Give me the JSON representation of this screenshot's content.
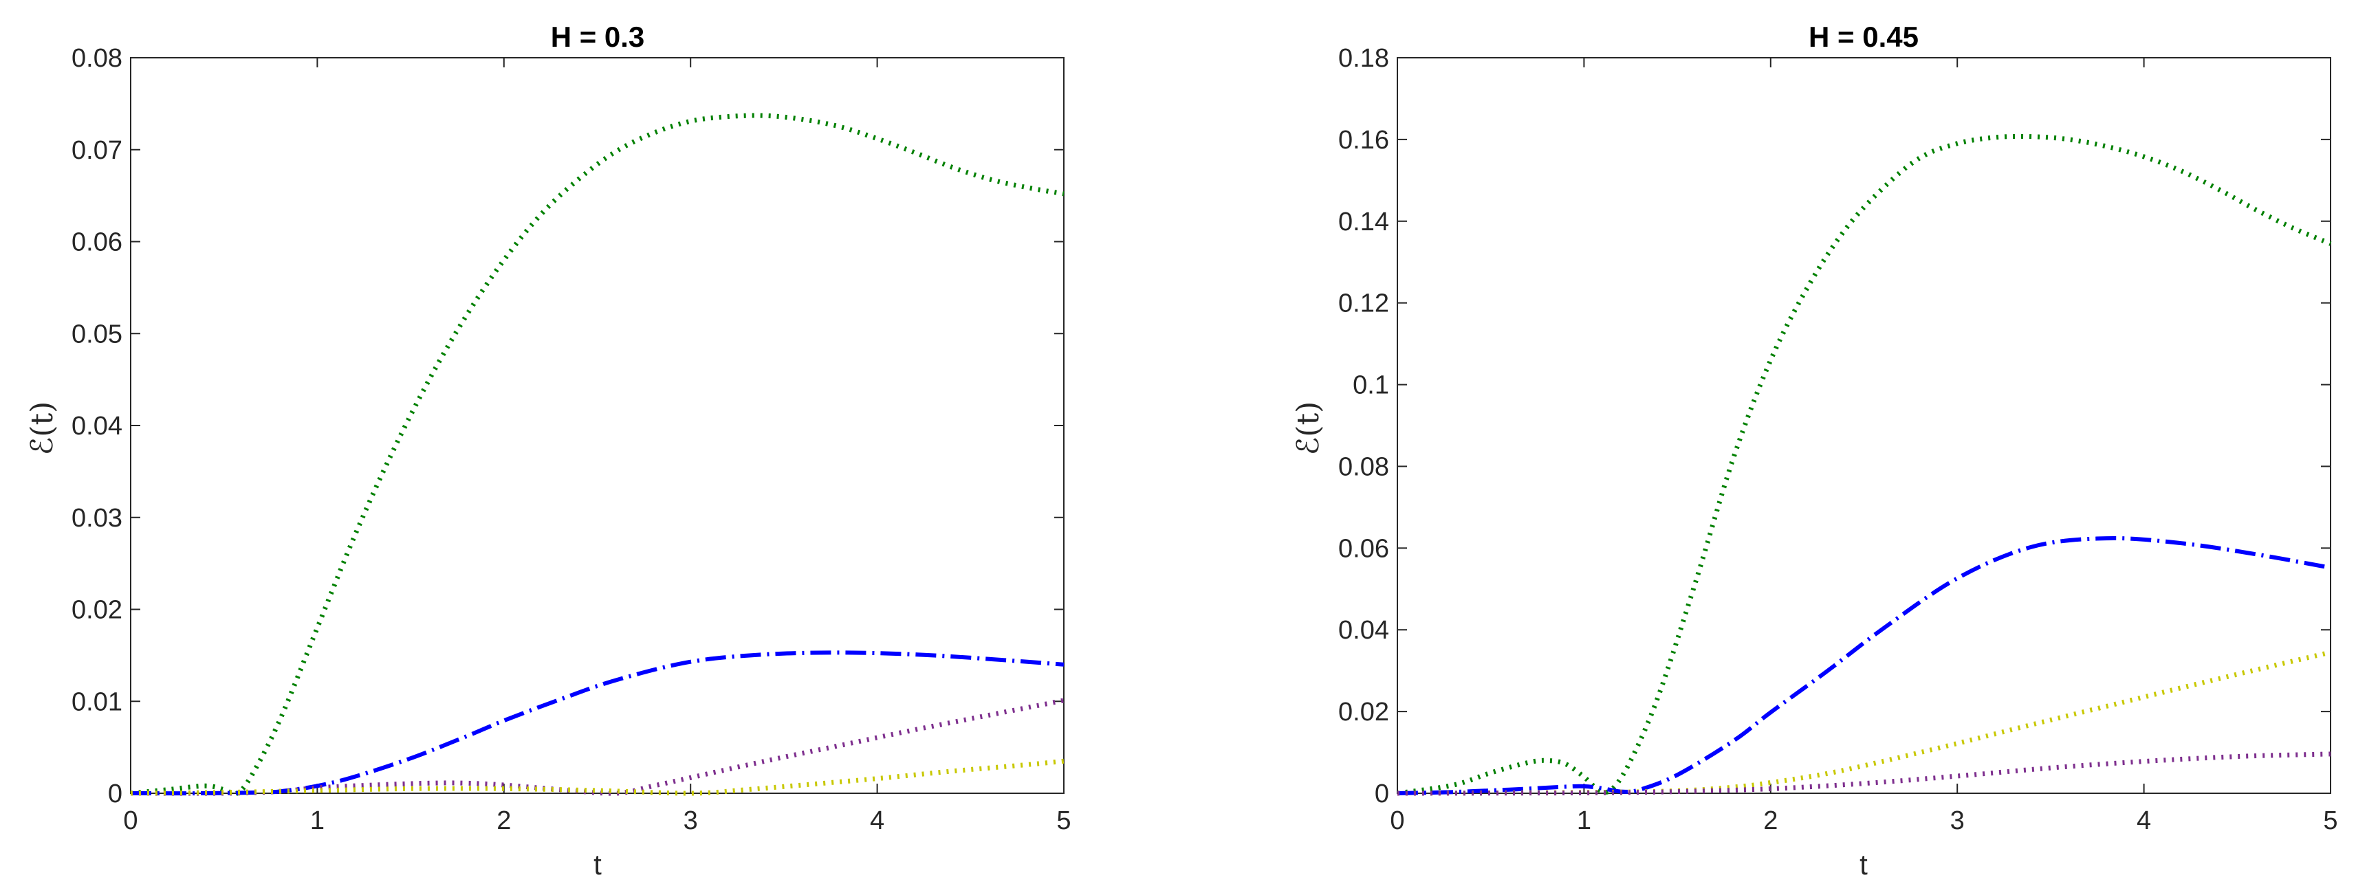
{
  "chart_data": [
    {
      "type": "line",
      "title": "H = 0.3",
      "xlabel": "t",
      "ylabel": "ℰ(t)",
      "xlim": [
        0,
        5
      ],
      "ylim": [
        0,
        0.08
      ],
      "xticks": [
        0,
        1,
        2,
        3,
        4,
        5
      ],
      "xtick_labels": [
        "0",
        "1",
        "2",
        "3",
        "4",
        "5"
      ],
      "yticks": [
        0,
        0.01,
        0.02,
        0.03,
        0.04,
        0.05,
        0.06,
        0.07,
        0.08
      ],
      "ytick_labels": [
        "0",
        "0.01",
        "0.02",
        "0.03",
        "0.04",
        "0.05",
        "0.06",
        "0.07",
        "0.08"
      ],
      "grid": false,
      "series": [
        {
          "name": "green",
          "color": "#008000",
          "style": "dotted",
          "x": [
            0,
            0.2,
            0.4,
            0.5,
            0.57,
            0.65,
            0.8,
            1.0,
            1.2,
            1.4,
            1.6,
            1.8,
            2.0,
            2.2,
            2.4,
            2.6,
            2.8,
            3.0,
            3.2,
            3.4,
            3.6,
            3.8,
            4.0,
            4.2,
            4.4,
            4.6,
            4.8,
            5.0
          ],
          "y": [
            0,
            0.0004,
            0.0008,
            0.0004,
            0,
            0.002,
            0.008,
            0.018,
            0.028,
            0.037,
            0.045,
            0.052,
            0.058,
            0.063,
            0.0668,
            0.0698,
            0.0718,
            0.0731,
            0.0736,
            0.0737,
            0.0733,
            0.0725,
            0.0712,
            0.0697,
            0.0681,
            0.0668,
            0.0659,
            0.0652
          ]
        },
        {
          "name": "blue",
          "color": "#0000ff",
          "style": "dashdot",
          "x": [
            0,
            0.4,
            0.7,
            0.8,
            1.0,
            1.2,
            1.5,
            1.8,
            2.0,
            2.3,
            2.6,
            3.0,
            3.4,
            3.8,
            4.2,
            4.6,
            5.0
          ],
          "y": [
            0,
            0,
            0.0001,
            0.0002,
            0.0008,
            0.0018,
            0.0038,
            0.0062,
            0.0079,
            0.0102,
            0.0123,
            0.0143,
            0.0151,
            0.0153,
            0.0151,
            0.0146,
            0.014
          ]
        },
        {
          "name": "purple",
          "color": "#7e2f8e",
          "style": "dotted",
          "x": [
            0,
            0.5,
            0.8,
            1.0,
            1.3,
            1.6,
            1.8,
            2.0,
            2.3,
            2.6,
            2.8,
            3.0,
            3.4,
            3.8,
            4.2,
            4.6,
            5.0
          ],
          "y": [
            0,
            0,
            0.0002,
            0.0006,
            0.0009,
            0.0011,
            0.0011,
            0.0009,
            0.0004,
            0,
            0.0008,
            0.0017,
            0.0035,
            0.0052,
            0.0069,
            0.0085,
            0.0101
          ]
        },
        {
          "name": "yellow",
          "color": "#c8c800",
          "style": "dotted",
          "x": [
            0,
            0.5,
            1.0,
            1.5,
            2.0,
            2.5,
            3.0,
            3.3,
            3.6,
            4.0,
            4.4,
            4.8,
            5.0
          ],
          "y": [
            0,
            0.0001,
            0.0003,
            0.0005,
            0.0005,
            0.0003,
            0,
            0.0004,
            0.0009,
            0.0016,
            0.0024,
            0.0031,
            0.0035
          ]
        }
      ]
    },
    {
      "type": "line",
      "title": "H = 0.45",
      "xlabel": "t",
      "ylabel": "ℰ(t)",
      "xlim": [
        0,
        5
      ],
      "ylim": [
        0,
        0.18
      ],
      "xticks": [
        0,
        1,
        2,
        3,
        4,
        5
      ],
      "xtick_labels": [
        "0",
        "1",
        "2",
        "3",
        "4",
        "5"
      ],
      "yticks": [
        0,
        0.02,
        0.04,
        0.06,
        0.08,
        0.1,
        0.12,
        0.14,
        0.16,
        0.18
      ],
      "ytick_labels": [
        "0",
        "0.02",
        "0.04",
        "0.06",
        "0.08",
        "0.1",
        "0.12",
        "0.14",
        "0.16",
        "0.18"
      ],
      "grid": false,
      "series": [
        {
          "name": "green",
          "color": "#008000",
          "style": "dotted",
          "x": [
            0,
            0.3,
            0.5,
            0.7,
            0.8,
            0.9,
            1.0,
            1.08,
            1.15,
            1.25,
            1.4,
            1.6,
            1.8,
            2.0,
            2.2,
            2.4,
            2.6,
            2.8,
            3.0,
            3.2,
            3.4,
            3.6,
            3.8,
            4.0,
            4.2,
            4.4,
            4.6,
            4.8,
            5.0
          ],
          "y": [
            0,
            0.002,
            0.005,
            0.0075,
            0.008,
            0.0072,
            0.004,
            0.0008,
            0.001,
            0.008,
            0.024,
            0.052,
            0.082,
            0.106,
            0.124,
            0.138,
            0.148,
            0.1555,
            0.159,
            0.1605,
            0.1607,
            0.16,
            0.1583,
            0.1558,
            0.1523,
            0.1478,
            0.1428,
            0.1383,
            0.1345
          ]
        },
        {
          "name": "blue",
          "color": "#0000ff",
          "style": "dashdot",
          "x": [
            0,
            0.3,
            0.6,
            0.9,
            1.0,
            1.1,
            1.2,
            1.3,
            1.5,
            1.8,
            2.0,
            2.3,
            2.6,
            3.0,
            3.4,
            3.8,
            4.2,
            4.6,
            5.0
          ],
          "y": [
            0,
            0.0003,
            0.0009,
            0.0016,
            0.0017,
            0.0012,
            0.0004,
            0.0009,
            0.0045,
            0.0128,
            0.0198,
            0.0298,
            0.0402,
            0.0526,
            0.0603,
            0.0624,
            0.0612,
            0.0585,
            0.0552
          ]
        },
        {
          "name": "yellow",
          "color": "#c8c800",
          "style": "dotted",
          "x": [
            0,
            1.0,
            1.5,
            1.8,
            2.0,
            2.3,
            2.6,
            3.0,
            3.4,
            3.8,
            4.2,
            4.6,
            5.0
          ],
          "y": [
            0,
            0.0002,
            0.0006,
            0.0015,
            0.0026,
            0.0048,
            0.0078,
            0.0122,
            0.0168,
            0.0213,
            0.0258,
            0.0302,
            0.0345
          ]
        },
        {
          "name": "purple",
          "color": "#7e2f8e",
          "style": "dotted",
          "x": [
            0,
            1.0,
            1.5,
            2.0,
            2.5,
            3.0,
            3.5,
            4.0,
            4.5,
            5.0
          ],
          "y": [
            0,
            0.0001,
            0.0004,
            0.0011,
            0.0024,
            0.0042,
            0.0062,
            0.0078,
            0.009,
            0.0096
          ]
        }
      ]
    }
  ]
}
